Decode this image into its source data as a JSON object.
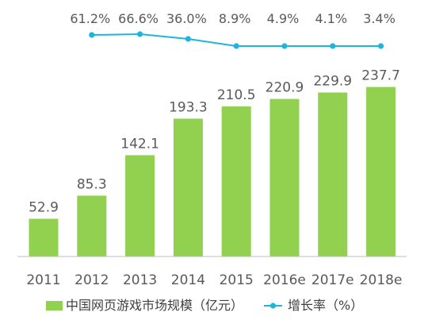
{
  "chart_data": {
    "type": "bar",
    "categories": [
      "2011",
      "2012",
      "2013",
      "2014",
      "2015",
      "2016e",
      "2017e",
      "2018e"
    ],
    "series": [
      {
        "name": "中国网页游戏市场规模（亿元）",
        "type": "bar",
        "values": [
          52.9,
          85.3,
          142.1,
          193.3,
          210.5,
          220.9,
          229.9,
          237.7
        ],
        "labels": [
          "52.9",
          "85.3",
          "142.1",
          "193.3",
          "210.5",
          "220.9",
          "229.9",
          "237.7"
        ]
      },
      {
        "name": "增长率（%）",
        "type": "line",
        "values": [
          null,
          61.2,
          66.6,
          36.0,
          8.9,
          4.9,
          4.1,
          3.4
        ],
        "labels": [
          "",
          "61.2%",
          "66.6%",
          "36.0%",
          "8.9%",
          "4.9%",
          "4.1%",
          "3.4%"
        ]
      }
    ],
    "ylim": [
      0,
      260
    ],
    "grid": false,
    "legend_position": "bottom",
    "colors": {
      "bar": "#92D050",
      "line": "#1FB4DE",
      "axis": "#BFBFBF",
      "text": "#595959"
    }
  }
}
